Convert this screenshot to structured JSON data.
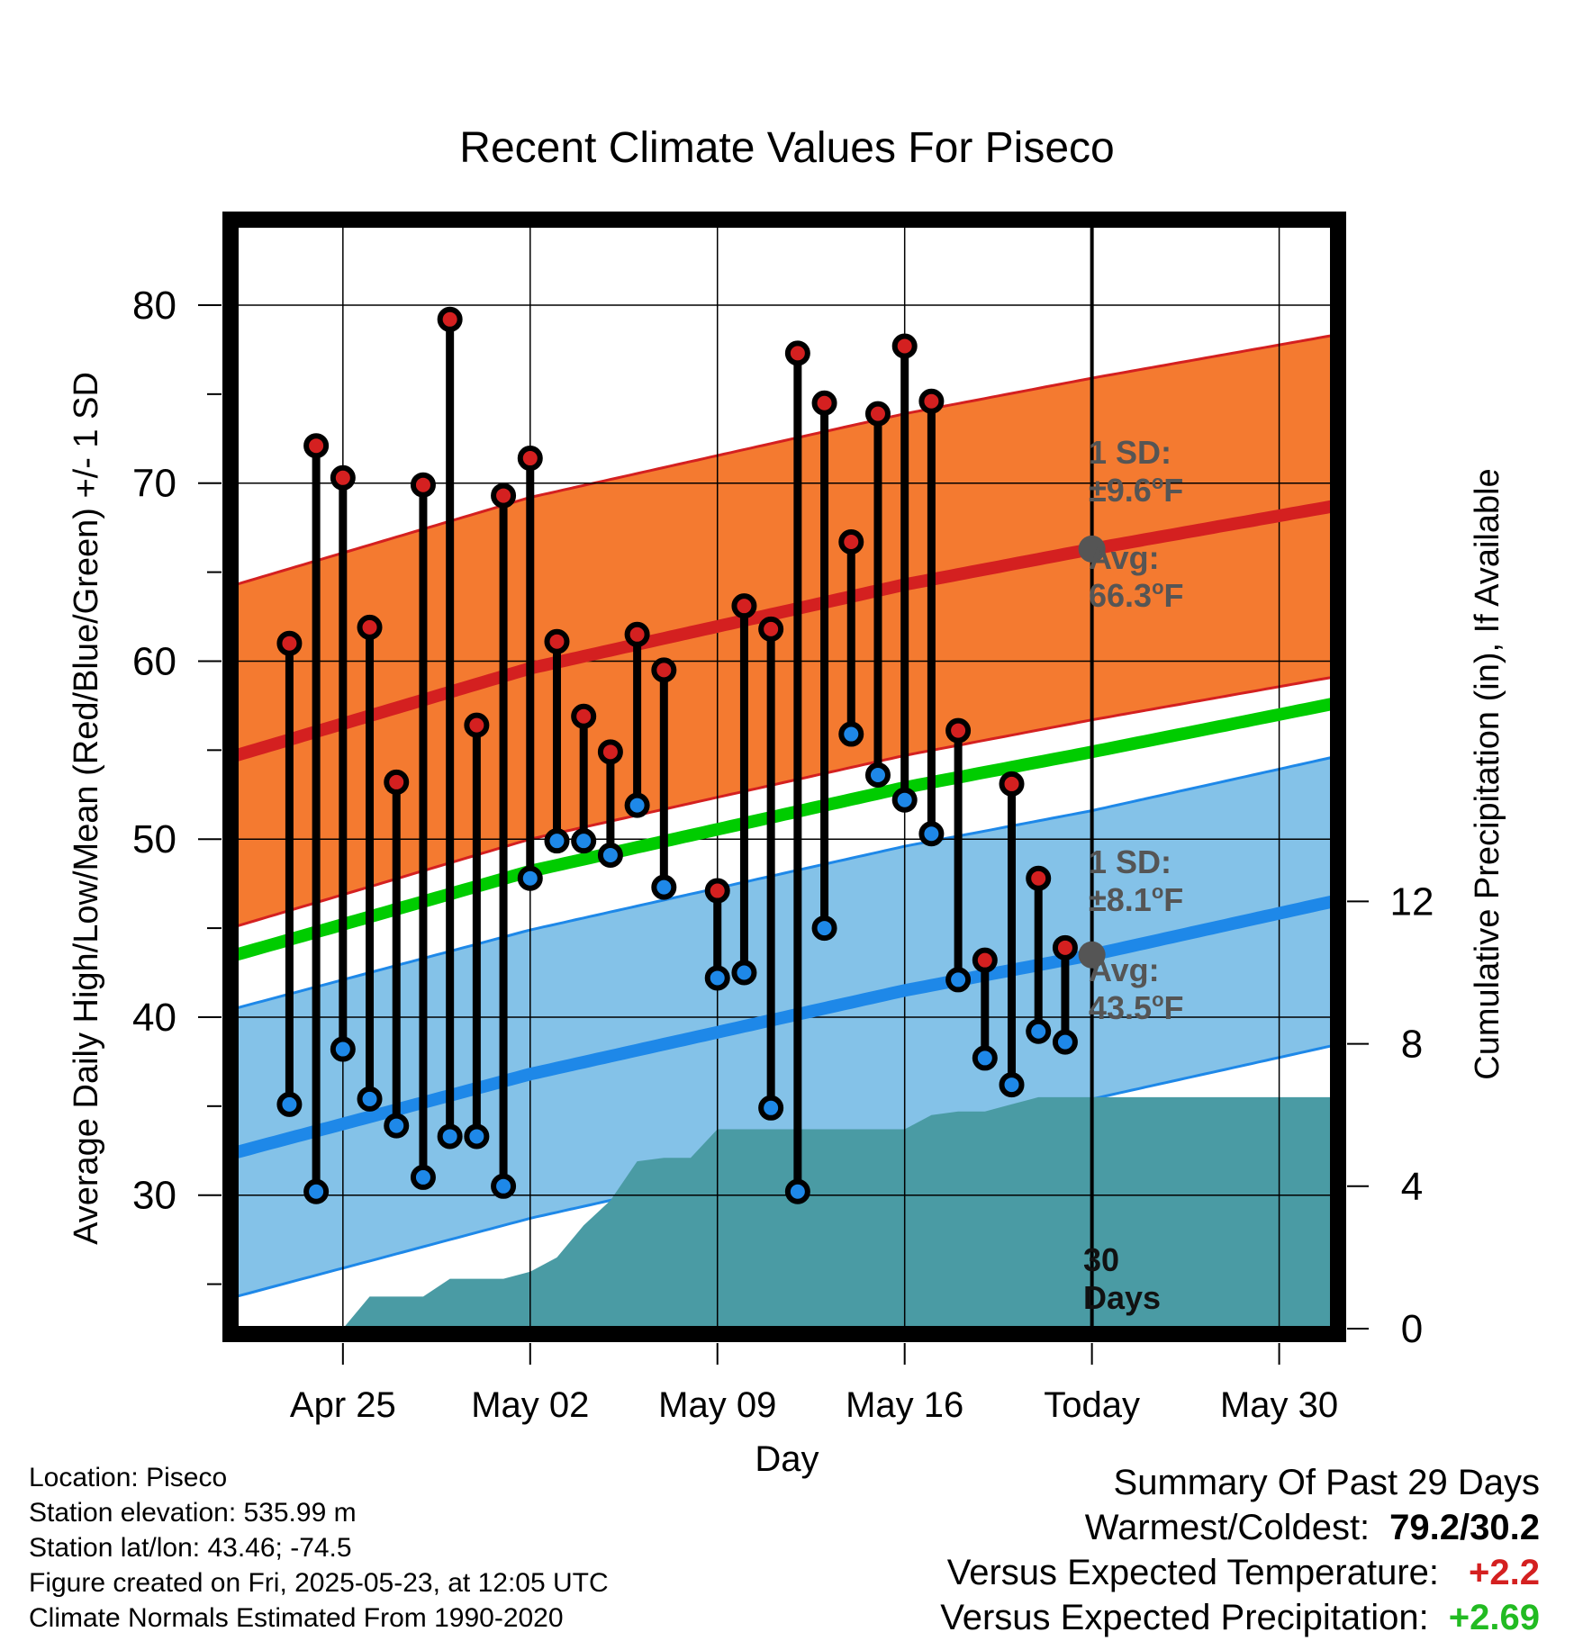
{
  "chart_data": {
    "type": "line",
    "title": "Recent Climate Values For Piseco",
    "xlabel": "Day",
    "ylabel": "Average Daily High/Low/Mean (Red/Blue/Green) +/- 1 SD",
    "y2label": "Cumulative Precipitation (in), If Available",
    "x_tick_labels": [
      "Apr 25",
      "May 02",
      "May 09",
      "May 16",
      "Today",
      "May 30"
    ],
    "x_tick_days": [
      "2025-04-25",
      "2025-05-02",
      "2025-05-09",
      "2025-05-16",
      "2025-05-23",
      "2025-05-30"
    ],
    "xlim": [
      "2025-04-21",
      "2025-06-01"
    ],
    "ylim": [
      22.5,
      84.5
    ],
    "y_ticks": [
      30,
      40,
      50,
      60,
      70,
      80
    ],
    "y2lim": [
      0,
      31
    ],
    "y2_ticks": [
      0,
      4,
      8,
      12
    ],
    "grid": true,
    "colors": {
      "high": "#d42020",
      "low": "#1e88e8",
      "mean": "#00cc00",
      "high_band": "#f47a30",
      "low_band": "#84c2e8",
      "precip": "#4a9ba4"
    },
    "normal_dates": [
      "2025-04-21",
      "2025-05-02",
      "2025-05-16",
      "2025-05-23",
      "2025-06-01"
    ],
    "normals": {
      "high_avg": [
        54.7,
        59.6,
        64.3,
        66.3,
        68.7
      ],
      "high_sd": 9.6,
      "low_avg": [
        32.4,
        36.8,
        41.5,
        43.5,
        46.5
      ],
      "low_sd": 8.1,
      "mean_avg": [
        43.5,
        48.2,
        52.9,
        54.9,
        57.6
      ]
    },
    "series": [
      {
        "name": "High",
        "x": [
          "2025-04-23",
          "2025-04-24",
          "2025-04-25",
          "2025-04-26",
          "2025-04-27",
          "2025-04-28",
          "2025-04-29",
          "2025-04-30",
          "2025-05-01",
          "2025-05-02",
          "2025-05-03",
          "2025-05-04",
          "2025-05-05",
          "2025-05-06",
          "2025-05-07",
          "2025-05-09",
          "2025-05-10",
          "2025-05-11",
          "2025-05-12",
          "2025-05-13",
          "2025-05-14",
          "2025-05-15",
          "2025-05-16",
          "2025-05-17",
          "2025-05-18",
          "2025-05-19",
          "2025-05-20",
          "2025-05-21",
          "2025-05-22"
        ],
        "values": [
          61.0,
          72.1,
          70.3,
          61.9,
          53.2,
          69.9,
          79.2,
          56.4,
          69.3,
          71.4,
          61.1,
          56.9,
          54.9,
          61.5,
          59.5,
          47.1,
          63.1,
          61.8,
          77.3,
          74.5,
          66.7,
          73.9,
          77.7,
          74.6,
          56.1,
          43.2,
          53.1,
          47.8,
          43.9
        ]
      },
      {
        "name": "Low",
        "x": [
          "2025-04-23",
          "2025-04-24",
          "2025-04-25",
          "2025-04-26",
          "2025-04-27",
          "2025-04-28",
          "2025-04-29",
          "2025-04-30",
          "2025-05-01",
          "2025-05-02",
          "2025-05-03",
          "2025-05-04",
          "2025-05-05",
          "2025-05-06",
          "2025-05-07",
          "2025-05-09",
          "2025-05-10",
          "2025-05-11",
          "2025-05-12",
          "2025-05-13",
          "2025-05-14",
          "2025-05-15",
          "2025-05-16",
          "2025-05-17",
          "2025-05-18",
          "2025-05-19",
          "2025-05-20",
          "2025-05-21",
          "2025-05-22"
        ],
        "values": [
          35.1,
          30.2,
          38.2,
          35.4,
          33.9,
          31.0,
          33.3,
          33.3,
          30.5,
          47.8,
          49.9,
          49.9,
          49.1,
          51.9,
          47.3,
          42.2,
          42.5,
          34.9,
          30.2,
          45.0,
          55.9,
          53.6,
          52.2,
          50.3,
          42.1,
          37.7,
          36.2,
          39.2,
          38.6
        ]
      },
      {
        "name": "Cumulative Precipitation",
        "axis": "right",
        "x": [
          "2025-04-21",
          "2025-04-22",
          "2025-04-23",
          "2025-04-24",
          "2025-04-25",
          "2025-04-26",
          "2025-04-27",
          "2025-04-28",
          "2025-04-29",
          "2025-04-30",
          "2025-05-01",
          "2025-05-02",
          "2025-05-03",
          "2025-05-04",
          "2025-05-05",
          "2025-05-06",
          "2025-05-07",
          "2025-05-08",
          "2025-05-09",
          "2025-05-10",
          "2025-05-11",
          "2025-05-12",
          "2025-05-13",
          "2025-05-14",
          "2025-05-15",
          "2025-05-16",
          "2025-05-17",
          "2025-05-18",
          "2025-05-19",
          "2025-05-20",
          "2025-05-21",
          "2025-05-22",
          "2025-06-01"
        ],
        "values": [
          0,
          0,
          0,
          0,
          0,
          0.9,
          0.9,
          0.9,
          1.4,
          1.4,
          1.4,
          1.6,
          2.0,
          2.9,
          3.6,
          4.7,
          4.8,
          4.8,
          5.6,
          5.6,
          5.6,
          5.6,
          5.6,
          5.6,
          5.6,
          5.6,
          6.0,
          6.1,
          6.1,
          6.3,
          6.5,
          6.5,
          6.5
        ]
      }
    ],
    "annotations": {
      "high_sd": {
        "line1": "1 SD:",
        "line2": "±9.6",
        "unit": "F"
      },
      "high_avg": {
        "line1": "Avg:",
        "line2": "66.3",
        "unit": "F"
      },
      "low_sd": {
        "line1": "1 SD:",
        "line2": "±8.1",
        "unit": "F"
      },
      "low_avg": {
        "line1": "Avg:",
        "line2": "43.5",
        "unit": "F"
      },
      "days": {
        "line1": "30",
        "line2": "Days"
      }
    }
  },
  "footer": {
    "location": "Location: Piseco",
    "elevation": "Station elevation: 535.99 m",
    "latlon": "Station lat/lon: 43.46; -74.5",
    "created": "Figure created on Fri, 2025-05-23, at 12:05 UTC",
    "normals": "Climate Normals Estimated From 1990-2020"
  },
  "summary": {
    "heading": "Summary Of Past 29 Days",
    "warm_cold_label": "Warmest/Coldest:",
    "warm_cold_value": "79.2/30.2",
    "temp_label": "Versus Expected Temperature:",
    "temp_value": "+2.2",
    "temp_color": "#d42020",
    "precip_label": "Versus Expected Precipitation:",
    "precip_value": "+2.69",
    "precip_color": "#22bb22"
  }
}
